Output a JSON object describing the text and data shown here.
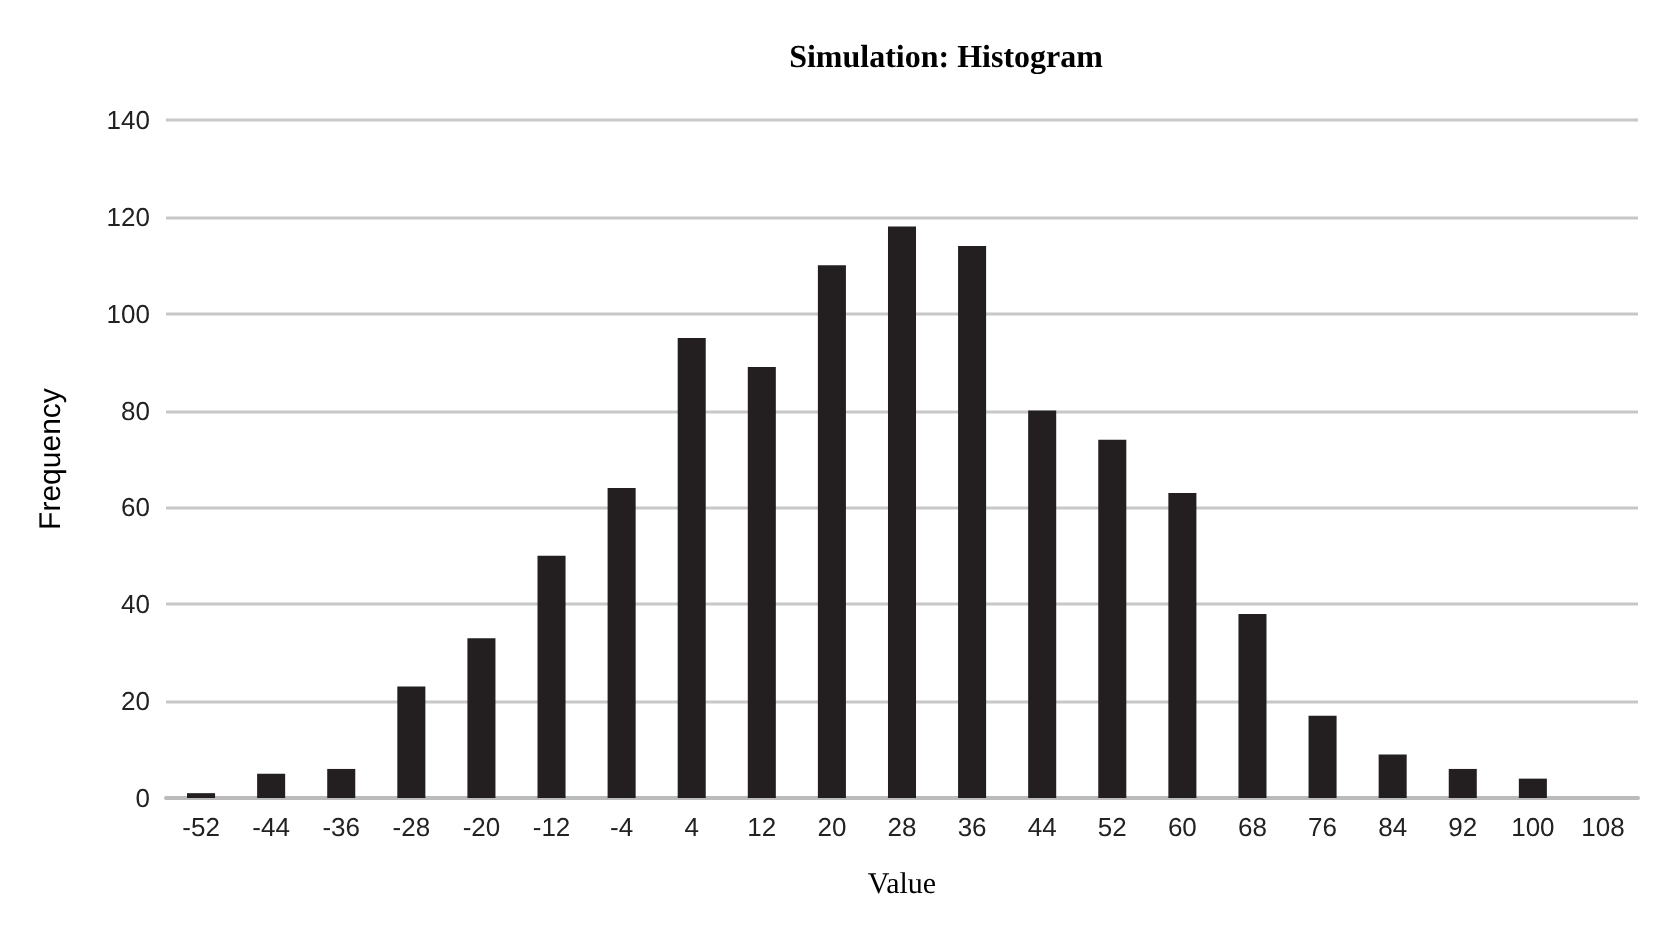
{
  "chart_data": {
    "type": "bar",
    "title": "Simulation: Histogram",
    "xlabel": "Value",
    "ylabel": "Frequency",
    "categories": [
      "-52",
      "-44",
      "-36",
      "-28",
      "-20",
      "-12",
      "-4",
      "4",
      "12",
      "20",
      "28",
      "36",
      "44",
      "52",
      "60",
      "68",
      "76",
      "84",
      "92",
      "100",
      "108"
    ],
    "values": [
      1,
      5,
      6,
      23,
      33,
      50,
      64,
      95,
      89,
      110,
      118,
      114,
      80,
      74,
      63,
      38,
      17,
      9,
      6,
      4,
      0
    ],
    "color": "#231f20",
    "ylim": [
      0,
      140
    ],
    "yticks": [
      0,
      20,
      40,
      60,
      80,
      100,
      120,
      140
    ],
    "grid": "y"
  }
}
